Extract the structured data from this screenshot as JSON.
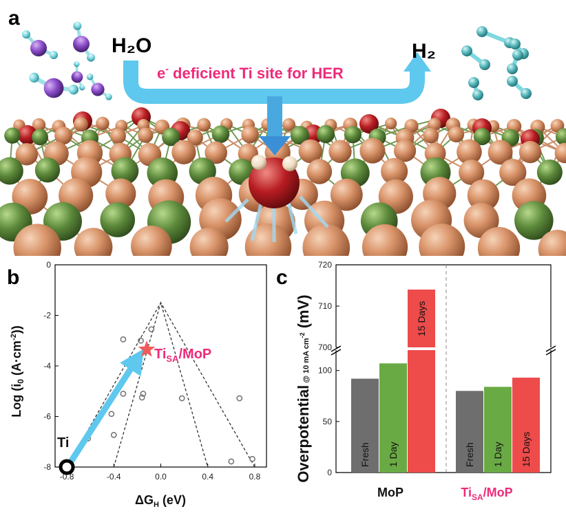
{
  "panel_a": {
    "letter": "a",
    "reactant": "H₂O",
    "product": "H₂",
    "caption_prefix": "e",
    "caption_superscript": "-",
    "caption_text": " deficient Ti site for HER",
    "colors": {
      "arrow": "#5ec8ee",
      "caption": "#ee2b7a",
      "mo_atom": "#d9946a",
      "p_atom": "#5d8a3b",
      "ti_atom": "#b81d22",
      "h_atom": "#7ed8e0",
      "o_atom": "#8a4dc9"
    }
  },
  "panel_b": {
    "letter": "b",
    "ylabel_main": "Log (i",
    "ylabel_sub": "0",
    "ylabel_tail": " (A·cm",
    "ylabel_sup": "-2",
    "ylabel_end": "))",
    "xlabel_delta": "ΔG",
    "xlabel_sub": "H",
    "xlabel_tail": " (eV)",
    "ti_label": "Ti",
    "star_label_main": "Ti",
    "star_label_sub": "SA",
    "star_label_tail": "/MoP"
  },
  "panel_c": {
    "letter": "c",
    "ylabel_main": "Overpotential",
    "ylabel_sub": "@ 10 mA cm",
    "ylabel_sup": "-2",
    "ylabel_tail": " (mV)",
    "group_labels": [
      "MoP",
      "Ti",
      "SA",
      "/MoP"
    ]
  },
  "chart_data": [
    {
      "type": "scatter",
      "panel": "b",
      "xlim": [
        -0.9,
        0.9
      ],
      "ylim": [
        -8,
        0
      ],
      "x_ticks": [
        -0.8,
        -0.4,
        0.0,
        0.4,
        0.8
      ],
      "x_tick_labels": [
        "-0.8",
        "-0.4",
        "0.0",
        "0.4",
        "0.8"
      ],
      "y_ticks": [
        0,
        -2,
        -4,
        -6,
        -8
      ],
      "y_tick_labels": [
        "0",
        "-2",
        "-4",
        "-6",
        "-8"
      ],
      "volcano_lines": [
        {
          "x": [
            -0.8,
            0.0,
            0.8
          ],
          "y": [
            -8.0,
            -1.5,
            -8.0
          ]
        },
        {
          "x": [
            -0.4,
            0.0,
            0.4
          ],
          "y": [
            -8.0,
            -1.5,
            -8.0
          ]
        }
      ],
      "points": [
        {
          "x": -0.62,
          "y": -6.87
        },
        {
          "x": -0.42,
          "y": -5.9
        },
        {
          "x": -0.4,
          "y": -6.73
        },
        {
          "x": -0.32,
          "y": -2.95
        },
        {
          "x": -0.32,
          "y": -5.1
        },
        {
          "x": -0.17,
          "y": -3.0
        },
        {
          "x": -0.15,
          "y": -5.1
        },
        {
          "x": -0.16,
          "y": -5.25
        },
        {
          "x": -0.08,
          "y": -2.55
        },
        {
          "x": 0.18,
          "y": -5.28
        },
        {
          "x": 0.6,
          "y": -7.78
        },
        {
          "x": 0.67,
          "y": -5.28
        },
        {
          "x": 0.78,
          "y": -7.68
        }
      ],
      "highlight": [
        {
          "label": "Ti",
          "x": -0.8,
          "y": -8.0
        },
        {
          "label": "TiSA/MoP",
          "x": -0.12,
          "y": -3.35
        }
      ]
    },
    {
      "type": "bar",
      "panel": "c",
      "y_axis_broken": true,
      "ylim_lower": [
        0,
        120
      ],
      "ylim_upper": [
        700,
        720
      ],
      "y_ticks_lower": [
        0,
        50,
        100
      ],
      "y_ticks_upper": [
        700,
        710,
        720
      ],
      "groups": [
        {
          "name": "MoP",
          "bars": [
            {
              "label": "Fresh",
              "value": 92,
              "color": "#6e6e6e"
            },
            {
              "label": "1 Day",
              "value": 107,
              "color": "#6aaa45"
            },
            {
              "label": "15 Days",
              "value": 714,
              "color": "#ee4b4b"
            }
          ]
        },
        {
          "name": "TiSA/MoP",
          "bars": [
            {
              "label": "Fresh",
              "value": 80,
              "color": "#6e6e6e"
            },
            {
              "label": "1 Day",
              "value": 84,
              "color": "#6aaa45"
            },
            {
              "label": "15 Days",
              "value": 93,
              "color": "#ee4b4b"
            }
          ]
        }
      ]
    }
  ]
}
